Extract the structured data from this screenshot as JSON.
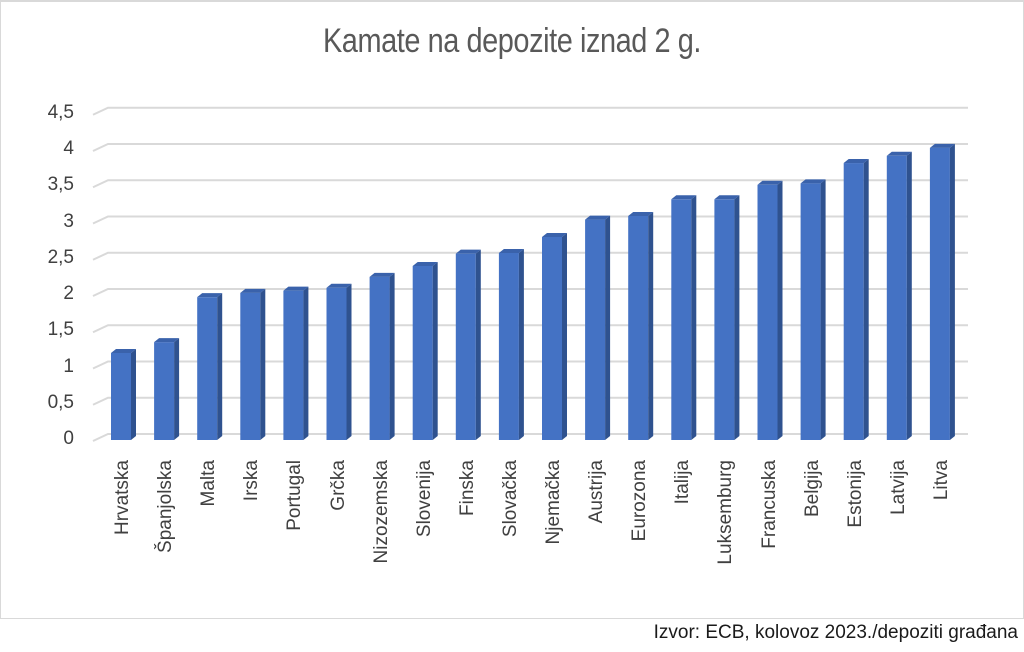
{
  "chart_data": {
    "type": "bar",
    "title": "Kamate na depozite iznad 2 g.",
    "xlabel": "",
    "ylabel": "",
    "ylim": [
      0,
      4.5
    ],
    "yticks": [
      "0",
      "0,5",
      "1",
      "1,5",
      "2",
      "2,5",
      "3",
      "3,5",
      "4",
      "4,5"
    ],
    "grid": true,
    "legend": null,
    "style": "3d-clustered-column",
    "bar_color": "#4472C4",
    "categories": [
      "Hrvatska",
      "Španjolska",
      "Malta",
      "Irska",
      "Portugal",
      "Grčka",
      "Nizozemska",
      "Slovenija",
      "Finska",
      "Slovačka",
      "Njemačka",
      "Austrija",
      "Eurozona",
      "Italija",
      "Luksemburg",
      "Francuska",
      "Belgija",
      "Estonija",
      "Latvija",
      "Litva"
    ],
    "values": [
      1.2,
      1.35,
      1.97,
      2.03,
      2.06,
      2.1,
      2.25,
      2.4,
      2.57,
      2.58,
      2.8,
      3.04,
      3.09,
      3.32,
      3.32,
      3.52,
      3.54,
      3.82,
      3.92,
      4.03
    ]
  },
  "footer": {
    "source": "Izvor: ECB, kolovoz 2023./depoziti građana"
  }
}
